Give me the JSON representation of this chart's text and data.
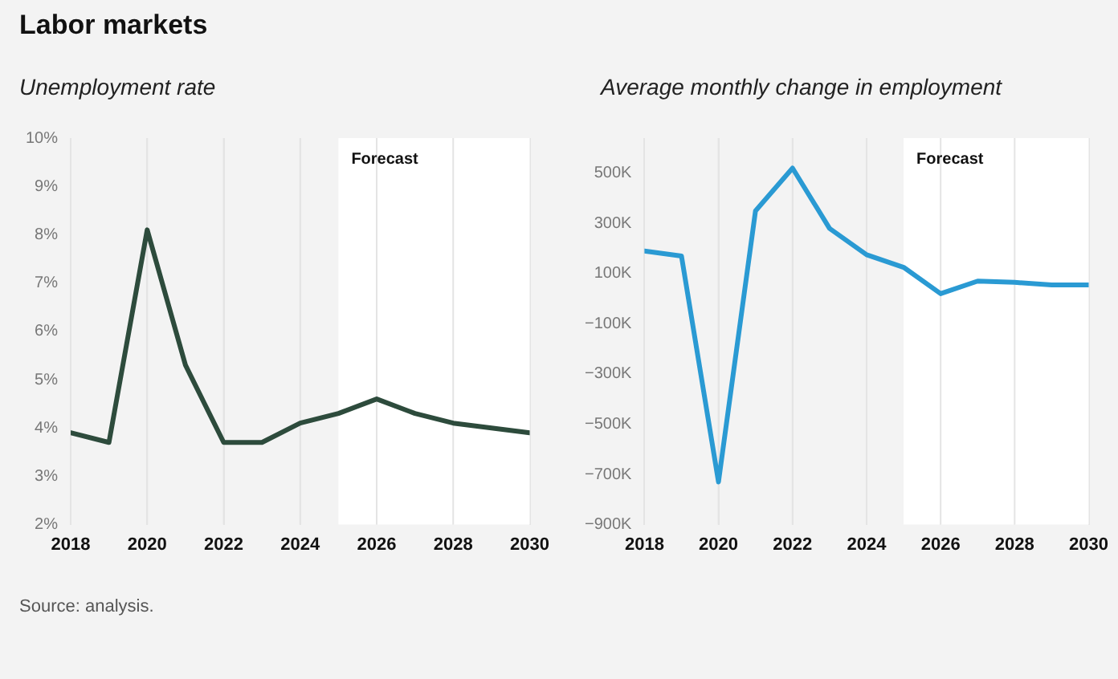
{
  "chart_data": [
    {
      "type": "line",
      "title": "Labor markets",
      "subtitle": "Unemployment rate",
      "x": [
        2018,
        2019,
        2020,
        2021,
        2022,
        2023,
        2024,
        2025,
        2026,
        2027,
        2028,
        2029,
        2030
      ],
      "series": [
        {
          "color": "#2d4b3c",
          "values": [
            3.9,
            3.7,
            8.1,
            5.3,
            3.7,
            3.7,
            4.1,
            4.3,
            4.6,
            4.3,
            4.1,
            4.0,
            3.9
          ]
        }
      ],
      "xlim": [
        2018,
        2030
      ],
      "xticks": [
        2018,
        2020,
        2022,
        2024,
        2026,
        2028,
        2030
      ],
      "ylim": [
        2,
        10
      ],
      "yticks": [
        {
          "value": 2,
          "label": "2%"
        },
        {
          "value": 3,
          "label": "3%"
        },
        {
          "value": 4,
          "label": "4%"
        },
        {
          "value": 5,
          "label": "5%"
        },
        {
          "value": 6,
          "label": "6%"
        },
        {
          "value": 7,
          "label": "7%"
        },
        {
          "value": 8,
          "label": "8%"
        },
        {
          "value": 9,
          "label": "9%"
        },
        {
          "value": 10,
          "label": "10%"
        }
      ],
      "bands": [
        {
          "axis": "x",
          "from": 2025,
          "to": 2030,
          "label": "Forecast",
          "color": "#ffffff"
        }
      ],
      "grid": "x",
      "legend": false,
      "annotations": [
        "Source: analysis."
      ]
    },
    {
      "type": "line",
      "title": "Average monthly change in employment",
      "x": [
        2018,
        2019,
        2020,
        2021,
        2022,
        2023,
        2024,
        2025,
        2026,
        2027,
        2028,
        2029,
        2030
      ],
      "series": [
        {
          "color": "#2a9ad3",
          "values": [
            190,
            170,
            -730,
            350,
            520,
            280,
            175,
            125,
            20,
            70,
            65,
            55,
            55
          ]
        }
      ],
      "xlim": [
        2018,
        2030
      ],
      "xticks": [
        2018,
        2020,
        2022,
        2024,
        2026,
        2028,
        2030
      ],
      "ylim": [
        -900,
        640
      ],
      "yticks": [
        {
          "value": -900,
          "label": "−900K"
        },
        {
          "value": -700,
          "label": "−700K"
        },
        {
          "value": -500,
          "label": "−500K"
        },
        {
          "value": -300,
          "label": "−300K"
        },
        {
          "value": -100,
          "label": "−100K"
        },
        {
          "value": 100,
          "label": "100K"
        },
        {
          "value": 300,
          "label": "300K"
        },
        {
          "value": 500,
          "label": "500K"
        }
      ],
      "bands": [
        {
          "axis": "x",
          "from": 2025,
          "to": 2030,
          "label": "Forecast",
          "color": "#ffffff"
        }
      ],
      "grid": "x",
      "legend": false
    }
  ]
}
